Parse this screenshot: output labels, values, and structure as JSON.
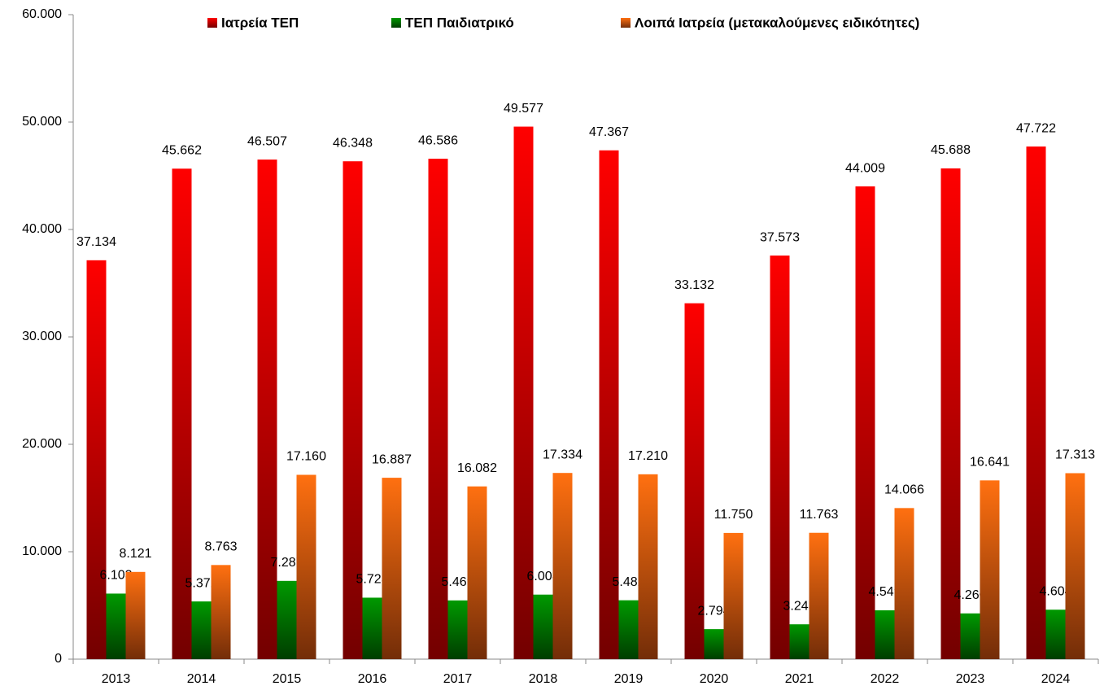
{
  "chart_data": {
    "type": "bar",
    "categories": [
      "2013",
      "2014",
      "2015",
      "2016",
      "2017",
      "2018",
      "2019",
      "2020",
      "2021",
      "2022",
      "2023",
      "2024"
    ],
    "series": [
      {
        "name": "Ιατρεία ΤΕΠ",
        "color": "#ff0000",
        "values": [
          37134,
          45662,
          46507,
          46348,
          46586,
          49577,
          47367,
          33132,
          37573,
          44009,
          45688,
          47722
        ],
        "value_labels": [
          "37.134",
          "45.662",
          "46.507",
          "46.348",
          "46.586",
          "49.577",
          "47.367",
          "33.132",
          "37.573",
          "44.009",
          "45.688",
          "47.722"
        ]
      },
      {
        "name": "ΤΕΠ Παιδιατρικό",
        "color": "#009900",
        "values": [
          6103,
          5372,
          7287,
          5723,
          5469,
          6008,
          5482,
          2794,
          3243,
          4549,
          4260,
          4604
        ],
        "value_labels": [
          "6.103",
          "5.372",
          "7.287",
          "5.723",
          "5.469",
          "6.008",
          "5.482",
          "2.794",
          "3.243",
          "4.549",
          "4.260",
          "4.604"
        ]
      },
      {
        "name": "Λοιπά Ιατρεία (μετακαλούμενες ειδικότητες)",
        "color": "#ff7010",
        "values": [
          8121,
          8763,
          17160,
          16887,
          16082,
          17334,
          17210,
          11750,
          11763,
          14066,
          16641,
          17313
        ],
        "value_labels": [
          "8.121",
          "8.763",
          "17.160",
          "16.887",
          "16.082",
          "17.334",
          "17.210",
          "11.750",
          "11.763",
          "14.066",
          "16.641",
          "17.313"
        ]
      }
    ],
    "ylim": [
      0,
      60000
    ],
    "yticks": [
      0,
      {
        "value": 10000,
        "label": "10.000"
      },
      {
        "value": 20000,
        "label": "20.000"
      },
      {
        "value": 30000,
        "label": "30.000"
      },
      {
        "value": 40000,
        "label": "40.000"
      },
      {
        "value": 50000,
        "label": "50.000"
      },
      {
        "value": 60000,
        "label": "60.000"
      }
    ],
    "grid": false,
    "legend": "top"
  }
}
